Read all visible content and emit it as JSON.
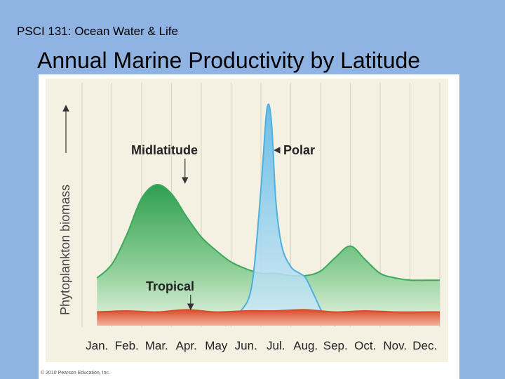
{
  "slide": {
    "course": "PSCI 131: Ocean Water & Life",
    "title": "Annual Marine Productivity by Latitude",
    "copyright": "© 2010 Pearson Education, Inc."
  },
  "colors": {
    "background": "#8fb4e3",
    "plot_bg": "#f4f0e2",
    "grid": "#d8d3c3",
    "midlatitude": "#39a95a",
    "polar": "#4fb0de",
    "tropical": "#d94c2a"
  },
  "chart_data": {
    "type": "area",
    "title": "",
    "xlabel": "",
    "ylabel": "Phytoplankton biomass",
    "categories": [
      "Jan.",
      "Feb.",
      "Mar.",
      "Apr.",
      "May",
      "Jun.",
      "Jul.",
      "Aug.",
      "Sep.",
      "Oct.",
      "Nov.",
      "Dec."
    ],
    "ylim": [
      0,
      100
    ],
    "grid": true,
    "series": [
      {
        "name": "Midlatitude",
        "color": "#39a95a",
        "x": [
          0,
          0.5,
          1,
          1.5,
          2,
          2.5,
          3,
          3.5,
          4,
          4.5,
          5,
          5.5,
          6,
          6.5,
          7,
          7.5,
          8,
          8.5,
          9,
          9.5,
          10,
          10.5,
          11,
          11.5
        ],
        "values": [
          21,
          27,
          40,
          56,
          62,
          58,
          48,
          39,
          33,
          28,
          25,
          23,
          23,
          22,
          22,
          24,
          30,
          35,
          29,
          23,
          21,
          20,
          20,
          20
        ]
      },
      {
        "name": "Polar",
        "color": "#4fb0de",
        "x": [
          4.3,
          4.8,
          5.2,
          5.5,
          5.7,
          5.85,
          6.0,
          6.2,
          6.5,
          6.8,
          7.0,
          7.3,
          7.6,
          8.0
        ],
        "values": [
          0,
          6,
          18,
          60,
          95,
          90,
          55,
          35,
          26,
          23,
          21,
          13,
          5,
          0
        ]
      },
      {
        "name": "Tropical",
        "color": "#d94c2a",
        "x": [
          0,
          1,
          2,
          3,
          4,
          5,
          6,
          7,
          8,
          9,
          10,
          11,
          11.5
        ],
        "values": [
          6,
          6.5,
          6,
          7,
          6,
          6.5,
          6.5,
          7,
          6,
          6.5,
          6,
          6,
          6
        ]
      }
    ],
    "annotations": [
      {
        "text": "Midlatitude",
        "points_to": "Midlatitude peak (Apr.)"
      },
      {
        "text": "Polar",
        "points_to": "Polar peak (Jul.)"
      },
      {
        "text": "Tropical",
        "points_to": "Tropical curve (Apr.)"
      }
    ]
  }
}
